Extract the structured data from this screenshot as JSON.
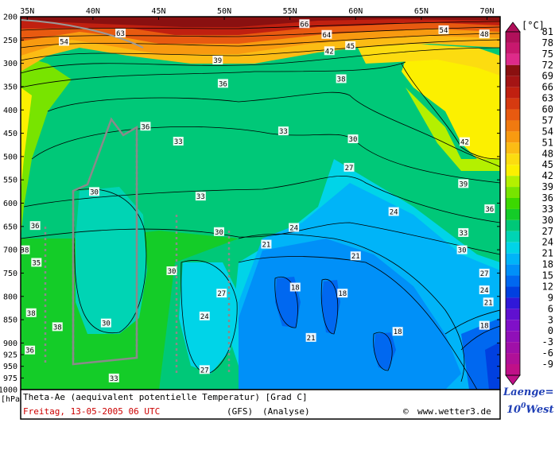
{
  "chart_data": {
    "type": "heatmap",
    "x_tick_labels": [
      "35N",
      "40N",
      "45N",
      "50N",
      "55N",
      "60N",
      "65N",
      "70N"
    ],
    "x_ticks_deg": [
      35,
      40,
      45,
      50,
      55,
      60,
      65,
      70
    ],
    "xlim": [
      34.5,
      71.0
    ],
    "y_tick_labels": [
      "200",
      "250",
      "300",
      "350",
      "400",
      "450",
      "500",
      "550",
      "600",
      "650",
      "700",
      "750",
      "800",
      "850",
      "900",
      "925",
      "950",
      "975",
      "1000"
    ],
    "y_ticks_hpa": [
      200,
      250,
      300,
      350,
      400,
      450,
      500,
      550,
      600,
      650,
      700,
      750,
      800,
      850,
      900,
      925,
      950,
      975,
      1000
    ],
    "ylim_hpa": [
      200,
      1000
    ],
    "y_unit": "[hPa]",
    "colorbar_unit": "[°C]",
    "colorbar_labels": [
      "81",
      "78",
      "75",
      "72",
      "69",
      "66",
      "63",
      "60",
      "57",
      "54",
      "51",
      "48",
      "45",
      "42",
      "39",
      "36",
      "33",
      "30",
      "27",
      "24",
      "21",
      "18",
      "15",
      "12",
      "9",
      "6",
      "3",
      "0",
      "-3",
      "-6",
      "-9"
    ],
    "colorbar_colors": [
      "#b0105a",
      "#c8186e",
      "#de2a8a",
      "#8a1010",
      "#a41414",
      "#c02010",
      "#d63a10",
      "#e85a10",
      "#f07a10",
      "#f89a10",
      "#fcbc14",
      "#fcdc10",
      "#fcf000",
      "#b4f000",
      "#78e400",
      "#3cd800",
      "#14cc28",
      "#00c878",
      "#00d4b4",
      "#00d4e8",
      "#00b4f8",
      "#0090f8",
      "#0068f0",
      "#0040e0",
      "#3018d8",
      "#6010d0",
      "#8010c8",
      "#9010b8",
      "#a010a8",
      "#b01098",
      "#c01088"
    ],
    "contour_labels": [
      {
        "v": "33",
        "lon": 46.5,
        "p": 467
      },
      {
        "v": "30",
        "lon": 46.0,
        "p": 745
      },
      {
        "v": "33",
        "lon": 41.6,
        "p": 975
      },
      {
        "v": "36",
        "lon": 44.0,
        "p": 435
      },
      {
        "v": "38",
        "lon": 37.3,
        "p": 865
      },
      {
        "v": "33",
        "lon": 54.5,
        "p": 445
      },
      {
        "v": "30",
        "lon": 59.8,
        "p": 462
      },
      {
        "v": "27",
        "lon": 59.5,
        "p": 523
      },
      {
        "v": "24",
        "lon": 62.9,
        "p": 618
      },
      {
        "v": "24",
        "lon": 55.3,
        "p": 652
      },
      {
        "v": "21",
        "lon": 53.2,
        "p": 688
      },
      {
        "v": "21",
        "lon": 60.0,
        "p": 713
      },
      {
        "v": "18",
        "lon": 55.4,
        "p": 780
      },
      {
        "v": "18",
        "lon": 59.0,
        "p": 793
      },
      {
        "v": "18",
        "lon": 63.2,
        "p": 875
      },
      {
        "v": "21",
        "lon": 56.6,
        "p": 888
      },
      {
        "v": "27",
        "lon": 49.8,
        "p": 793
      },
      {
        "v": "24",
        "lon": 48.5,
        "p": 842
      },
      {
        "v": "27",
        "lon": 48.5,
        "p": 957
      },
      {
        "v": "30",
        "lon": 49.6,
        "p": 661
      },
      {
        "v": "33",
        "lon": 48.2,
        "p": 585
      },
      {
        "v": "30",
        "lon": 40.1,
        "p": 575
      },
      {
        "v": "30",
        "lon": 41.0,
        "p": 857
      },
      {
        "v": "36",
        "lon": 35.6,
        "p": 648
      },
      {
        "v": "38",
        "lon": 34.8,
        "p": 700
      },
      {
        "v": "35",
        "lon": 35.7,
        "p": 727
      },
      {
        "v": "38",
        "lon": 35.3,
        "p": 835
      },
      {
        "v": "36",
        "lon": 35.2,
        "p": 915
      },
      {
        "v": "36",
        "lon": 49.9,
        "p": 343
      },
      {
        "v": "39",
        "lon": 49.5,
        "p": 293
      },
      {
        "v": "38",
        "lon": 58.9,
        "p": 333
      },
      {
        "v": "42",
        "lon": 58.0,
        "p": 273
      },
      {
        "v": "45",
        "lon": 59.6,
        "p": 262
      },
      {
        "v": "54",
        "lon": 37.8,
        "p": 253
      },
      {
        "v": "63",
        "lon": 42.1,
        "p": 235
      },
      {
        "v": "66",
        "lon": 56.1,
        "p": 215
      },
      {
        "v": "64",
        "lon": 57.8,
        "p": 238
      },
      {
        "v": "54",
        "lon": 66.7,
        "p": 228
      },
      {
        "v": "48",
        "lon": 69.8,
        "p": 237
      },
      {
        "v": "42",
        "lon": 68.3,
        "p": 468
      },
      {
        "v": "39",
        "lon": 68.2,
        "p": 558
      },
      {
        "v": "36",
        "lon": 70.2,
        "p": 612
      },
      {
        "v": "33",
        "lon": 68.2,
        "p": 663
      },
      {
        "v": "30",
        "lon": 68.1,
        "p": 700
      },
      {
        "v": "27",
        "lon": 69.8,
        "p": 750
      },
      {
        "v": "24",
        "lon": 69.8,
        "p": 786
      },
      {
        "v": "21",
        "lon": 70.1,
        "p": 812
      },
      {
        "v": "18",
        "lon": 69.8,
        "p": 862
      }
    ]
  },
  "legend_caption": "Laenge=",
  "legend_value": "10",
  "legend_degree": "0",
  "legend_suffix": "West",
  "footer": {
    "title": "Theta-Ae (aequivalent potentielle Temperatur) [Grad C]",
    "date": "Freitag, 13-05-2005  06 UTC",
    "model": "(GFS)",
    "kind": "(Analyse)",
    "copyright": "©",
    "site": "www.wetter3.de"
  }
}
